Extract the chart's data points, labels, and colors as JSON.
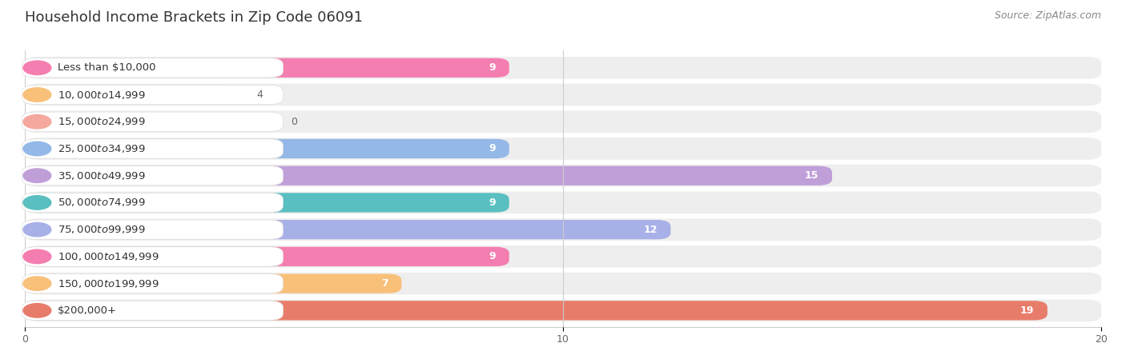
{
  "title": "Household Income Brackets in Zip Code 06091",
  "source": "Source: ZipAtlas.com",
  "categories": [
    "Less than $10,000",
    "$10,000 to $14,999",
    "$15,000 to $24,999",
    "$25,000 to $34,999",
    "$35,000 to $49,999",
    "$50,000 to $74,999",
    "$75,000 to $99,999",
    "$100,000 to $149,999",
    "$150,000 to $199,999",
    "$200,000+"
  ],
  "values": [
    9,
    4,
    0,
    9,
    15,
    9,
    12,
    9,
    7,
    19
  ],
  "bar_colors": [
    "#F47EB0",
    "#F9C07A",
    "#F4A89E",
    "#94B8E8",
    "#C09FD8",
    "#5ABFC0",
    "#A8B0E8",
    "#F47EB0",
    "#F9C07A",
    "#E87C6A"
  ],
  "xlim": [
    0,
    20
  ],
  "xticks": [
    0,
    10,
    20
  ],
  "row_bg_color": "#EEEEEE",
  "title_fontsize": 13,
  "label_fontsize": 9.5,
  "value_fontsize": 9,
  "source_fontsize": 9,
  "fig_bg": "#FFFFFF"
}
